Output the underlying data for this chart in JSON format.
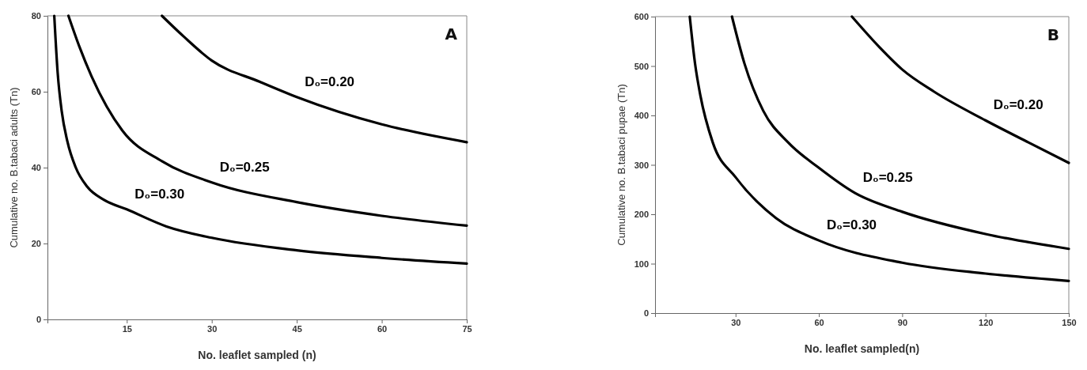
{
  "chart_data": [
    {
      "type": "line",
      "xlabel": "No. leaflet sampled (n)",
      "ylabel": "Cumulative no. B.tabaci adults (Tn)",
      "xlim": [
        1,
        75
      ],
      "xticks": [
        15,
        30,
        45,
        60,
        75
      ],
      "ylim": [
        0,
        80
      ],
      "yticks": [
        0,
        20,
        40,
        60,
        80
      ],
      "series": [
        {
          "name": "D₀=0.30",
          "color": "#000000",
          "x": [
            2.2,
            2.8,
            3.5,
            4.5,
            6,
            8,
            11,
            15,
            22,
            30,
            45,
            60,
            75
          ],
          "values": [
            80,
            65,
            55,
            47,
            40,
            35,
            31.5,
            29,
            24.5,
            21.5,
            18.2,
            16.2,
            14.7
          ]
        },
        {
          "name": "D₀=0.25",
          "color": "#000000",
          "x": [
            4.7,
            6.6,
            8.8,
            14.2,
            21.2,
            30,
            45,
            60,
            75
          ],
          "values": [
            80,
            72,
            64,
            49.8,
            41.7,
            36.1,
            30.9,
            27.3,
            24.7
          ]
        },
        {
          "name": "D₀=0.20",
          "color": "#000000",
          "x": [
            21.2,
            25,
            30,
            38.5,
            45,
            60,
            75
          ],
          "values": [
            80,
            74.6,
            68.2,
            62.6,
            58.6,
            51.4,
            46.7
          ]
        }
      ],
      "annotations": [
        "A"
      ]
    },
    {
      "type": "line",
      "xlabel": "No. leaflet sampled(n)",
      "ylabel": "Cumulative no. B.tabaci pupae (Tn)",
      "xlim": [
        1,
        150
      ],
      "xticks": [
        30,
        60,
        90,
        120,
        150
      ],
      "ylim": [
        0,
        600
      ],
      "yticks": [
        0,
        100,
        200,
        300,
        400,
        500,
        600
      ],
      "series": [
        {
          "name": "D₀=0.30",
          "color": "#000000",
          "x": [
            13.5,
            15.4,
            17.3,
            21.8,
            30,
            44.6,
            60,
            90,
            120,
            150
          ],
          "values": [
            600,
            505,
            441,
            345,
            275,
            192,
            147,
            102,
            80,
            65
          ]
        },
        {
          "name": "D₀=0.25",
          "color": "#000000",
          "x": [
            28.7,
            33.2,
            40,
            49,
            60,
            73,
            90,
            120,
            150
          ],
          "values": [
            600,
            505,
            409,
            345,
            294,
            243,
            205,
            160,
            130
          ]
        },
        {
          "name": "D₀=0.20",
          "color": "#000000",
          "x": [
            71.9,
            82,
            90,
            101.5,
            120,
            135.6,
            150
          ],
          "values": [
            600,
            537,
            493,
            448,
            390,
            345,
            304
          ]
        }
      ],
      "annotations": [
        "B"
      ]
    }
  ]
}
